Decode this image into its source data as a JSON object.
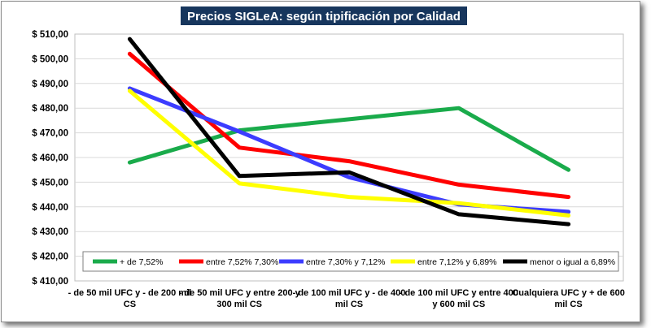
{
  "chart_data": {
    "type": "line",
    "title": "Precios SIGLeA: según tipificación por Calidad",
    "categories": [
      "- de 50 mil UFC y - de 200 mil CS",
      "- de 50 mil UFC y entre 200 y 300 mil CS",
      "- de 100 mil UFC y - de 400 mil CS",
      "- de 100 mil UFC y entre 400 y 600 mil CS",
      "Cualquiera UFC y + de 600 mil CS"
    ],
    "category_lines": [
      [
        "- de 50 mil UFC y - de 200 mil",
        "CS"
      ],
      [
        "- de 50 mil UFC y entre  200 y",
        "300 mil CS"
      ],
      [
        "- de 100 mil UFC y - de 400",
        "mil CS"
      ],
      [
        "- de 100 mil UFC y entre  400",
        "y 600 mil CS"
      ],
      [
        "Cualquiera UFC y + de 600",
        "mil CS"
      ]
    ],
    "ylim": [
      410,
      510
    ],
    "ystep": 10,
    "ytick_labels": [
      "$ 410,00",
      "$ 420,00",
      "$ 430,00",
      "$ 440,00",
      "$ 450,00",
      "$ 460,00",
      "$ 470,00",
      "$ 480,00",
      "$ 490,00",
      "$ 500,00",
      "$ 510,00"
    ],
    "grid": true,
    "legend_position": "bottom-inside",
    "series": [
      {
        "name": "+ de 7,52%",
        "color": "#1aab4b",
        "values": [
          458,
          471,
          475.5,
          480,
          455
        ]
      },
      {
        "name": "entre 7,52% 7,30%",
        "color": "#ff0000",
        "values": [
          502,
          464,
          458.5,
          449,
          444
        ]
      },
      {
        "name": "entre 7,30% y 7,12%",
        "color": "#3c3cff",
        "values": [
          488,
          470.5,
          452,
          441,
          438
        ]
      },
      {
        "name": "entre 7,12% y 6,89%",
        "color": "#ffff00",
        "values": [
          487,
          449.5,
          444,
          441.5,
          436.5
        ]
      },
      {
        "name": "menor o igual a 6,89%",
        "color": "#000000",
        "values": [
          508,
          452.5,
          454,
          437,
          433
        ]
      }
    ]
  }
}
